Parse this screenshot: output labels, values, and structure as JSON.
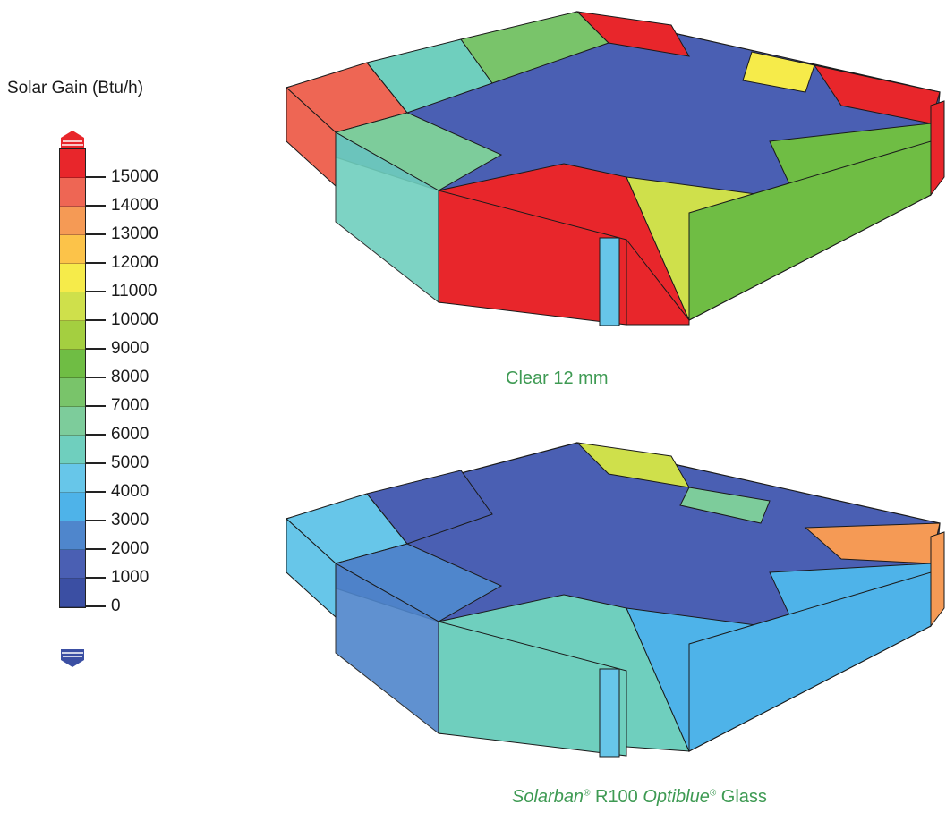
{
  "legend": {
    "title": "Solar Gain (Btu/h)",
    "colors": [
      "#e8262b",
      "#ee6654",
      "#f59a55",
      "#fcc349",
      "#f6eb4a",
      "#cfe04b",
      "#a4cf40",
      "#6fbd44",
      "#79c46a",
      "#7dcc9b",
      "#6fcfbe",
      "#67c6e9",
      "#4eb3e9",
      "#4f86cc",
      "#4a5fb3",
      "#3b4fa3"
    ],
    "ticks": [
      "15000",
      "14000",
      "13000",
      "12000",
      "11000",
      "10000",
      "9000",
      "8000",
      "7000",
      "6000",
      "5000",
      "4000",
      "3000",
      "2000",
      "1000",
      "0"
    ],
    "top_cap_color": "#e8262b",
    "bottom_cap_color": "#3b4fa3"
  },
  "views": [
    {
      "caption": "Clear 12 mm",
      "core_color": "#4a5fb3",
      "south_face": "#e8262b",
      "west_face": "#ee6654",
      "east_face": "#e8262b",
      "southeast_face": "#6fbd44"
    },
    {
      "caption_parts": {
        "brand1": "Solarban",
        "reg1": "®",
        "mid": " R100 ",
        "brand2": "Optiblue",
        "reg2": "®",
        "end": " Glass"
      },
      "core_color": "#4a5fb3",
      "south_face": "#6fcfbe",
      "west_face": "#67c6e9",
      "east_face": "#f59a55",
      "southeast_face": "#4eb3e9"
    }
  ]
}
